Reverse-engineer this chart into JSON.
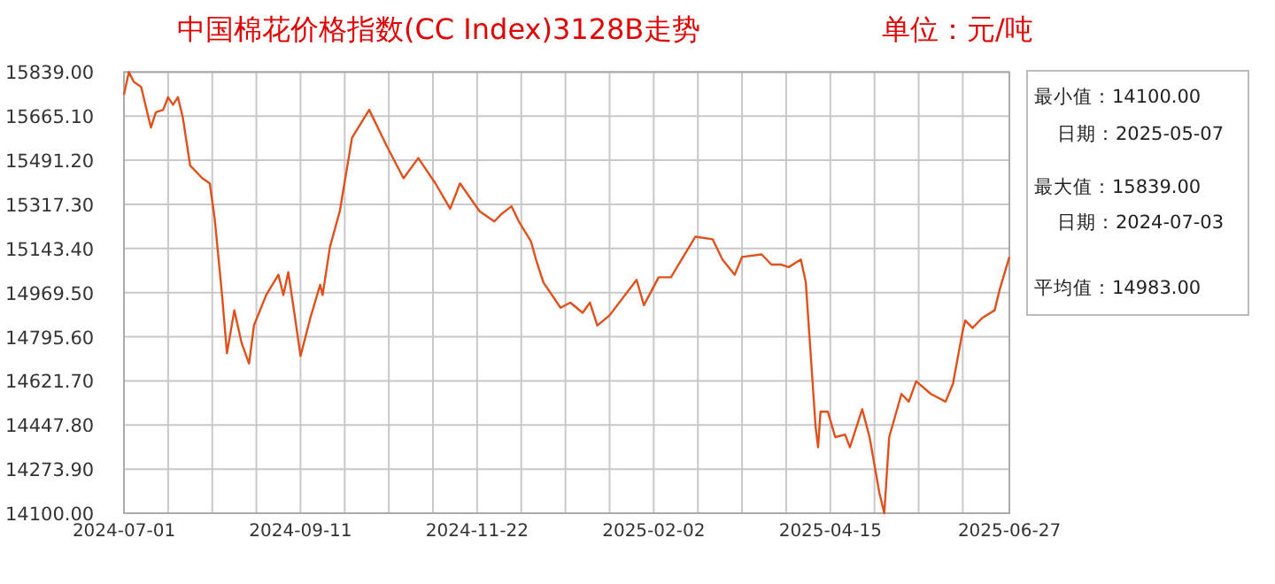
{
  "chart_data": {
    "type": "line",
    "title": "中国棉花价格指数(CC Index)3128B走势",
    "annotations": [
      "单位：元/吨",
      "最小值：14100.00",
      "日期：2025-05-07",
      "最大值：15839.00",
      "日期：2024-07-03",
      "平均值：14983.00"
    ],
    "x": [
      "2024-07-01",
      "2024-07-03",
      "2024-07-05",
      "2024-07-08",
      "2024-07-10",
      "2024-07-12",
      "2024-07-14",
      "2024-07-17",
      "2024-07-19",
      "2024-07-21",
      "2024-07-23",
      "2024-07-25",
      "2024-07-28",
      "2024-08-02",
      "2024-08-05",
      "2024-08-07",
      "2024-08-10",
      "2024-08-12",
      "2024-08-15",
      "2024-08-18",
      "2024-08-21",
      "2024-08-23",
      "2024-08-28",
      "2024-09-02",
      "2024-09-04",
      "2024-09-06",
      "2024-09-08",
      "2024-09-11",
      "2024-09-15",
      "2024-09-19",
      "2024-09-20",
      "2024-09-23",
      "2024-09-27",
      "2024-10-02",
      "2024-10-09",
      "2024-10-16",
      "2024-10-23",
      "2024-10-29",
      "2024-11-05",
      "2024-11-11",
      "2024-11-15",
      "2024-11-23",
      "2024-11-29",
      "2024-12-02",
      "2024-12-06",
      "2024-12-09",
      "2024-12-14",
      "2024-12-16",
      "2024-12-19",
      "2024-12-26",
      "2024-12-30",
      "2025-01-04",
      "2025-01-07",
      "2025-01-10",
      "2025-01-15",
      "2025-01-26",
      "2025-01-29",
      "2025-02-04",
      "2025-02-09",
      "2025-02-14",
      "2025-02-19",
      "2025-02-26",
      "2025-03-02",
      "2025-03-07",
      "2025-03-10",
      "2025-03-18",
      "2025-03-22",
      "2025-03-26",
      "2025-03-29",
      "2025-04-03",
      "2025-04-05",
      "2025-04-09",
      "2025-04-10",
      "2025-04-11",
      "2025-04-14",
      "2025-04-17",
      "2025-04-21",
      "2025-04-23",
      "2025-04-28",
      "2025-05-01",
      "2025-05-05",
      "2025-05-07",
      "2025-05-09",
      "2025-05-14",
      "2025-05-17",
      "2025-05-20",
      "2025-05-26",
      "2025-06-01",
      "2025-06-04",
      "2025-06-08",
      "2025-06-09",
      "2025-06-12",
      "2025-06-16",
      "2025-06-21",
      "2025-06-23",
      "2025-06-27"
    ],
    "series": [
      {
        "color": "#e0501a",
        "values": [
          15750,
          15839,
          15800,
          15780,
          15700,
          15620,
          15680,
          15690,
          15740,
          15710,
          15740,
          15660,
          15470,
          15420,
          15400,
          15260,
          14960,
          14730,
          14900,
          14770,
          14690,
          14840,
          14960,
          15040,
          14960,
          15050,
          14920,
          14720,
          14870,
          15000,
          14960,
          15150,
          15290,
          15580,
          15690,
          15550,
          15420,
          15500,
          15400,
          15300,
          15400,
          15290,
          15250,
          15280,
          15310,
          15250,
          15170,
          15100,
          15010,
          14910,
          14930,
          14890,
          14930,
          14840,
          14880,
          15020,
          14920,
          15030,
          15030,
          15110,
          15190,
          15180,
          15100,
          15040,
          15110,
          15120,
          15080,
          15080,
          15070,
          15100,
          15010,
          14440,
          14360,
          14500,
          14500,
          14400,
          14410,
          14360,
          14510,
          14400,
          14180,
          14100,
          14400,
          14570,
          14540,
          14620,
          14570,
          14540,
          14610,
          14820,
          14860,
          14830,
          14870,
          14900,
          14980,
          15110
        ]
      }
    ],
    "xlim": [
      "2024-07-01",
      "2025-06-27"
    ],
    "xticks": [
      "2024-07-01",
      {
        "value": "2024-07-19",
        "label": null
      },
      {
        "value": "2024-08-06",
        "label": null
      },
      {
        "value": "2024-08-24",
        "label": null
      },
      "2024-09-11",
      {
        "value": "2024-09-29",
        "label": null
      },
      {
        "value": "2024-10-17",
        "label": null
      },
      {
        "value": "2024-11-04",
        "label": null
      },
      "2024-11-22",
      {
        "value": "2024-12-10",
        "label": null
      },
      {
        "value": "2024-12-28",
        "label": null
      },
      {
        "value": "2025-01-15",
        "label": null
      },
      "2025-02-02",
      {
        "value": "2025-02-20",
        "label": null
      },
      {
        "value": "2025-03-10",
        "label": null
      },
      {
        "value": "2025-03-28",
        "label": null
      },
      "2025-04-15",
      {
        "value": "2025-05-03",
        "label": null
      },
      {
        "value": "2025-05-21",
        "label": null
      },
      {
        "value": "2025-06-08",
        "label": null
      },
      "2025-06-27"
    ],
    "ylim": [
      14100,
      15839
    ],
    "yticks": [
      {
        "value": 14100,
        "label": "14100.00"
      },
      {
        "value": 14273.9,
        "label": "14273.90"
      },
      {
        "value": 14447.8,
        "label": "14447.80"
      },
      {
        "value": 14621.7,
        "label": "14621.70"
      },
      {
        "value": 14795.6,
        "label": "14795.60"
      },
      {
        "value": 14969.5,
        "label": "14969.50"
      },
      {
        "value": 15143.4,
        "label": "15143.40"
      },
      {
        "value": 15317.3,
        "label": "15317.30"
      },
      {
        "value": 15491.2,
        "label": "15491.20"
      },
      {
        "value": 15665.1,
        "label": "15665.10"
      },
      {
        "value": 15839,
        "label": "15839.00"
      }
    ],
    "grid": true,
    "marker": "none",
    "line_style": "solid"
  }
}
